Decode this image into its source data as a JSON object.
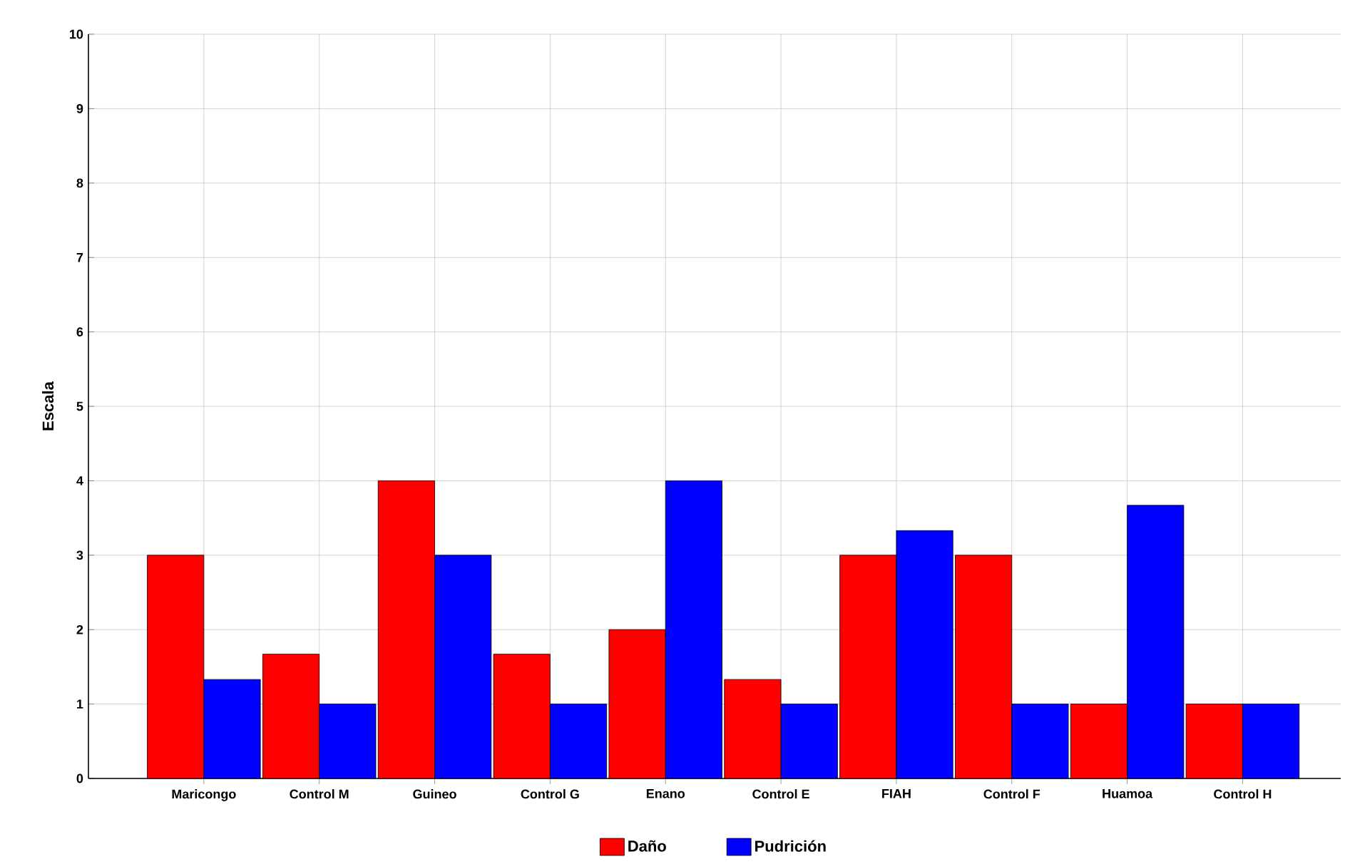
{
  "chart_data": {
    "type": "bar",
    "ylabel": "Escala",
    "categories": [
      "Maricongo",
      "Control M",
      "Guineo",
      "Control G",
      "Enano",
      "Control E",
      "FIAH",
      "Control F",
      "Huamoa",
      "Control H"
    ],
    "series": [
      {
        "name": "Daño",
        "color": "#ff0000",
        "values": [
          3,
          1.67,
          4,
          1.67,
          2,
          1.33,
          3,
          3,
          1,
          1
        ]
      },
      {
        "name": "Pudrición",
        "color": "#0000ff",
        "values": [
          1.33,
          1,
          3,
          1,
          4,
          1,
          3.33,
          1,
          3.67,
          1
        ]
      }
    ],
    "ylim": [
      0,
      10
    ],
    "yticks": [
      0,
      1,
      2,
      3,
      4,
      5,
      6,
      7,
      8,
      9,
      10
    ],
    "grid": true,
    "legend": "bottom"
  }
}
